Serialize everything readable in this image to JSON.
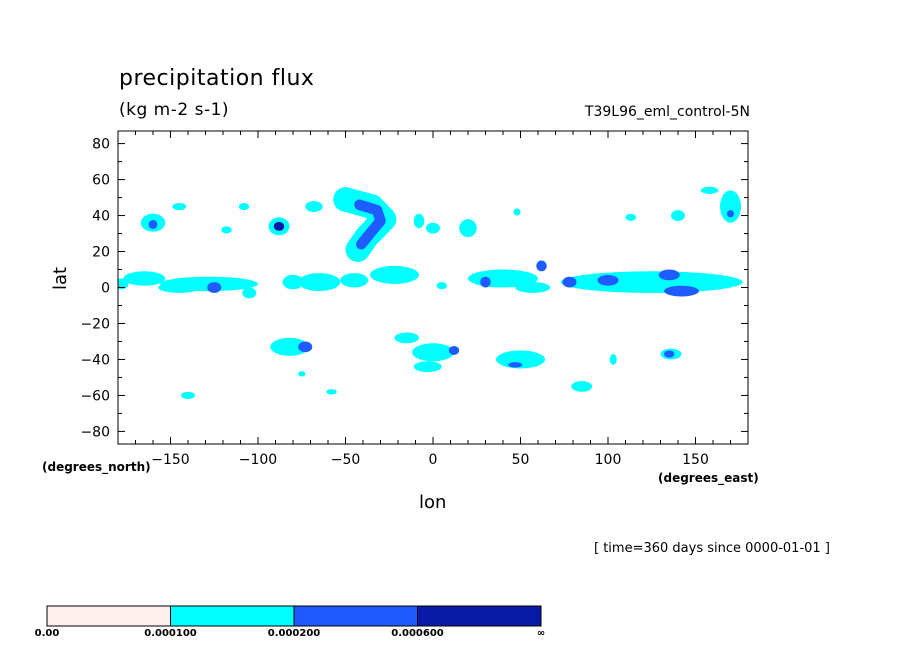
{
  "header": {
    "title": "precipitation flux",
    "units": "(kg m-2 s-1)",
    "run_id": "T39L96_eml_control-5N",
    "time_info": "[ time=360 days since 0000-01-01 ]"
  },
  "colors": {
    "level0": "#ffeeee",
    "level1": "#00ffff",
    "level2": "#1e5cff",
    "level3": "#0a1aa8"
  },
  "chart_data": {
    "type": "heatmap",
    "title": "precipitation flux",
    "subtitle": "(kg m-2 s-1)",
    "xlabel": "lon",
    "ylabel": "lat",
    "x_unit_label": "(degrees_east)",
    "y_unit_label": "(degrees_north)",
    "xlim": [
      -180,
      180
    ],
    "ylim": [
      -87,
      87
    ],
    "x_ticks": [
      -150,
      -100,
      -50,
      0,
      50,
      100,
      150
    ],
    "y_ticks": [
      80,
      60,
      40,
      20,
      0,
      -20,
      -40,
      -60,
      -80
    ],
    "colorbar": {
      "levels": [
        "0.00",
        "0.000100",
        "0.000200",
        "0.000600",
        "∞"
      ],
      "colors": [
        "#ffeeee",
        "#00ffff",
        "#1e5cff",
        "#0a1aa8"
      ]
    },
    "regions": [
      {
        "level": 1,
        "lon": -178,
        "lat": 2,
        "dlon": 4,
        "dlat": 3
      },
      {
        "level": 1,
        "lon": -165,
        "lat": 5,
        "dlon": 12,
        "dlat": 4
      },
      {
        "level": 1,
        "lon": -128,
        "lat": 2,
        "dlon": 28,
        "dlat": 4
      },
      {
        "level": 1,
        "lon": -145,
        "lat": 0,
        "dlon": 12,
        "dlat": 3
      },
      {
        "level": 2,
        "lon": -125,
        "lat": 0,
        "dlon": 4,
        "dlat": 3
      },
      {
        "level": 1,
        "lon": -105,
        "lat": -3,
        "dlon": 4,
        "dlat": 3
      },
      {
        "level": 1,
        "lon": -80,
        "lat": 3,
        "dlon": 6,
        "dlat": 4
      },
      {
        "level": 1,
        "lon": -65,
        "lat": 3,
        "dlon": 12,
        "dlat": 5
      },
      {
        "level": 1,
        "lon": -45,
        "lat": 4,
        "dlon": 8,
        "dlat": 4
      },
      {
        "level": 1,
        "lon": -22,
        "lat": 7,
        "dlon": 14,
        "dlat": 5
      },
      {
        "level": 1,
        "lon": 5,
        "lat": 1,
        "dlon": 3,
        "dlat": 2
      },
      {
        "level": 1,
        "lon": 40,
        "lat": 5,
        "dlon": 20,
        "dlat": 5
      },
      {
        "level": 2,
        "lon": 30,
        "lat": 3,
        "dlon": 3,
        "dlat": 3
      },
      {
        "level": 2,
        "lon": 62,
        "lat": 12,
        "dlon": 3,
        "dlat": 3
      },
      {
        "level": 1,
        "lon": 57,
        "lat": 0,
        "dlon": 10,
        "dlat": 3
      },
      {
        "level": 1,
        "lon": 125,
        "lat": 3,
        "dlon": 52,
        "dlat": 6
      },
      {
        "level": 2,
        "lon": 78,
        "lat": 3,
        "dlon": 4,
        "dlat": 3
      },
      {
        "level": 2,
        "lon": 100,
        "lat": 4,
        "dlon": 6,
        "dlat": 3
      },
      {
        "level": 2,
        "lon": 135,
        "lat": 7,
        "dlon": 6,
        "dlat": 3
      },
      {
        "level": 2,
        "lon": 142,
        "lat": -2,
        "dlon": 10,
        "dlat": 3
      },
      {
        "level": 1,
        "lon": -160,
        "lat": 36,
        "dlon": 7,
        "dlat": 5
      },
      {
        "level": 2,
        "lon": -160,
        "lat": 35,
        "dlon": 2.5,
        "dlat": 2.5
      },
      {
        "level": 1,
        "lon": -145,
        "lat": 45,
        "dlon": 4,
        "dlat": 2
      },
      {
        "level": 1,
        "lon": -108,
        "lat": 45,
        "dlon": 3,
        "dlat": 2
      },
      {
        "level": 1,
        "lon": -118,
        "lat": 32,
        "dlon": 3,
        "dlat": 2
      },
      {
        "level": 1,
        "lon": -88,
        "lat": 34,
        "dlon": 6,
        "dlat": 5
      },
      {
        "level": 3,
        "lon": -88,
        "lat": 34,
        "dlon": 3,
        "dlat": 2.5
      },
      {
        "level": 1,
        "lon": -68,
        "lat": 45,
        "dlon": 5,
        "dlat": 3
      },
      {
        "level": 1,
        "lon": -8,
        "lat": 37,
        "dlon": 3,
        "dlat": 4
      },
      {
        "level": 1,
        "lon": 0,
        "lat": 33,
        "dlon": 4,
        "dlat": 3
      },
      {
        "level": 1,
        "lon": 20,
        "lat": 33,
        "dlon": 5,
        "dlat": 5
      },
      {
        "level": 1,
        "lon": 48,
        "lat": 42,
        "dlon": 2,
        "dlat": 2
      },
      {
        "level": 1,
        "lon": 113,
        "lat": 39,
        "dlon": 3,
        "dlat": 2
      },
      {
        "level": 1,
        "lon": 140,
        "lat": 40,
        "dlon": 4,
        "dlat": 3
      },
      {
        "level": 1,
        "lon": 170,
        "lat": 45,
        "dlon": 6,
        "dlat": 9
      },
      {
        "level": 1,
        "lon": 158,
        "lat": 54,
        "dlon": 5,
        "dlat": 2
      },
      {
        "level": 2,
        "lon": 170,
        "lat": 41,
        "dlon": 2,
        "dlat": 2
      },
      {
        "level": 1,
        "lon": -82,
        "lat": -33,
        "dlon": 11,
        "dlat": 5
      },
      {
        "level": 2,
        "lon": -73,
        "lat": -33,
        "dlon": 4,
        "dlat": 3
      },
      {
        "level": 1,
        "lon": -15,
        "lat": -28,
        "dlon": 7,
        "dlat": 3
      },
      {
        "level": 1,
        "lon": 0,
        "lat": -36,
        "dlon": 12,
        "dlat": 5
      },
      {
        "level": 2,
        "lon": 12,
        "lat": -35,
        "dlon": 3,
        "dlat": 2.5
      },
      {
        "level": 1,
        "lon": -3,
        "lat": -44,
        "dlon": 8,
        "dlat": 3
      },
      {
        "level": 1,
        "lon": 50,
        "lat": -40,
        "dlon": 14,
        "dlat": 5
      },
      {
        "level": 2,
        "lon": 47,
        "lat": -43,
        "dlon": 4,
        "dlat": 1.5
      },
      {
        "level": 1,
        "lon": 103,
        "lat": -40,
        "dlon": 2,
        "dlat": 3
      },
      {
        "level": 1,
        "lon": 136,
        "lat": -37,
        "dlon": 6,
        "dlat": 3
      },
      {
        "level": 2,
        "lon": 135,
        "lat": -37,
        "dlon": 3,
        "dlat": 2
      },
      {
        "level": 1,
        "lon": 85,
        "lat": -55,
        "dlon": 6,
        "dlat": 3
      },
      {
        "level": 1,
        "lon": -140,
        "lat": -60,
        "dlon": 4,
        "dlat": 2
      },
      {
        "level": 1,
        "lon": -75,
        "lat": -48,
        "dlon": 2,
        "dlat": 1.5
      },
      {
        "level": 1,
        "lon": -58,
        "lat": -58,
        "dlon": 3,
        "dlat": 1.5
      }
    ],
    "strokes": [
      {
        "level": 1,
        "width_deg": 14,
        "points": [
          [
            -50,
            49
          ],
          [
            -35,
            45
          ],
          [
            -28,
            38
          ],
          [
            -38,
            28
          ],
          [
            -43,
            21
          ]
        ]
      },
      {
        "level": 2,
        "width_deg": 6,
        "points": [
          [
            -42,
            46
          ],
          [
            -32,
            43
          ],
          [
            -30,
            37
          ],
          [
            -36,
            30
          ],
          [
            -41,
            24
          ]
        ]
      }
    ]
  }
}
